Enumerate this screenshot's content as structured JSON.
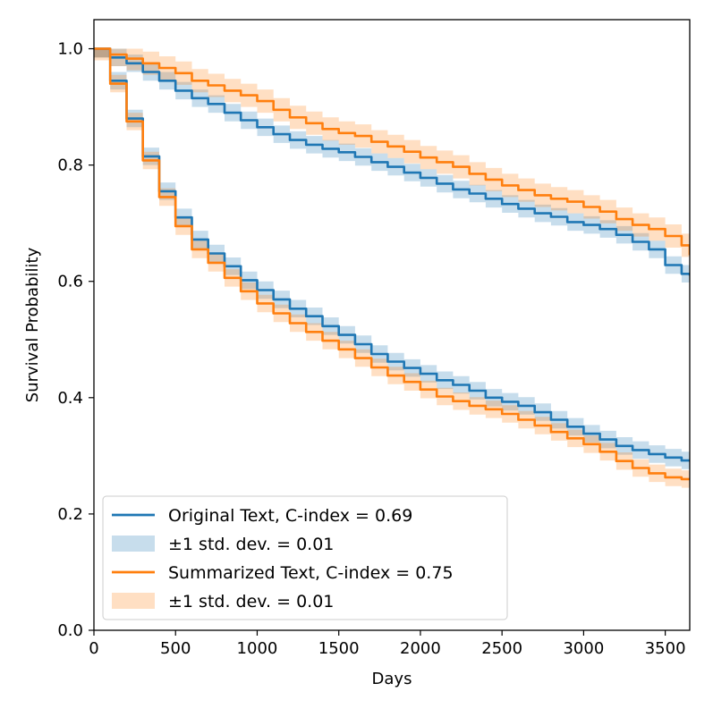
{
  "chart_data": {
    "type": "line",
    "title": "",
    "xlabel": "Days",
    "ylabel": "Survival Probability",
    "xlim": [
      0,
      3650
    ],
    "ylim": [
      0.0,
      1.05
    ],
    "xticks": [
      0,
      500,
      1000,
      1500,
      2000,
      2500,
      3000,
      3500
    ],
    "yticks": [
      0.0,
      0.2,
      0.4,
      0.6,
      0.8,
      1.0
    ],
    "xtick_labels": [
      "0",
      "500",
      "1000",
      "1500",
      "2000",
      "2500",
      "3000",
      "3500"
    ],
    "ytick_labels": [
      "0.0",
      "0.2",
      "0.4",
      "0.6",
      "0.8",
      "1.0"
    ],
    "grid": false,
    "legend_position": "lower-left",
    "legend": [
      {
        "label": "Original Text, C-index = 0.69",
        "kind": "line",
        "color": "#1f77b4"
      },
      {
        "label": "±1 std. dev. = 0.01",
        "kind": "band",
        "color": "#1f77b4"
      },
      {
        "label": "Summarized Text, C-index = 0.75",
        "kind": "line",
        "color": "#ff7f0e"
      },
      {
        "label": "±1 std. dev. = 0.01",
        "kind": "band",
        "color": "#ff7f0e"
      }
    ],
    "series": [
      {
        "name": "Original Text (upper curve)",
        "color": "#1f77b4",
        "x": [
          0,
          100,
          200,
          300,
          400,
          500,
          600,
          700,
          800,
          900,
          1000,
          1100,
          1200,
          1300,
          1400,
          1500,
          1600,
          1700,
          1800,
          1900,
          2000,
          2100,
          2200,
          2300,
          2400,
          2500,
          2600,
          2700,
          2800,
          2900,
          3000,
          3100,
          3200,
          3300,
          3400,
          3500,
          3600,
          3650
        ],
        "y": [
          1.0,
          0.985,
          0.975,
          0.96,
          0.945,
          0.928,
          0.915,
          0.905,
          0.89,
          0.877,
          0.865,
          0.853,
          0.843,
          0.835,
          0.828,
          0.822,
          0.814,
          0.805,
          0.797,
          0.787,
          0.778,
          0.768,
          0.758,
          0.751,
          0.742,
          0.733,
          0.725,
          0.717,
          0.711,
          0.702,
          0.697,
          0.69,
          0.68,
          0.668,
          0.655,
          0.628,
          0.613,
          0.61
        ],
        "band": 0.015
      },
      {
        "name": "Summarized Text (upper curve)",
        "color": "#ff7f0e",
        "x": [
          0,
          100,
          200,
          300,
          400,
          500,
          600,
          700,
          800,
          900,
          1000,
          1100,
          1200,
          1300,
          1400,
          1500,
          1600,
          1700,
          1800,
          1900,
          2000,
          2100,
          2200,
          2300,
          2400,
          2500,
          2600,
          2700,
          2800,
          2900,
          3000,
          3100,
          3200,
          3300,
          3400,
          3500,
          3600,
          3650
        ],
        "y": [
          1.0,
          0.99,
          0.983,
          0.975,
          0.967,
          0.958,
          0.945,
          0.937,
          0.928,
          0.92,
          0.91,
          0.895,
          0.882,
          0.872,
          0.862,
          0.855,
          0.85,
          0.84,
          0.832,
          0.823,
          0.813,
          0.805,
          0.797,
          0.785,
          0.775,
          0.765,
          0.757,
          0.748,
          0.742,
          0.737,
          0.728,
          0.72,
          0.707,
          0.697,
          0.69,
          0.678,
          0.662,
          0.645
        ],
        "band": 0.02
      },
      {
        "name": "Original Text (lower curve)",
        "color": "#1f77b4",
        "x": [
          0,
          100,
          200,
          300,
          400,
          500,
          600,
          700,
          800,
          900,
          1000,
          1100,
          1200,
          1300,
          1400,
          1500,
          1600,
          1700,
          1800,
          1900,
          2000,
          2100,
          2200,
          2300,
          2400,
          2500,
          2600,
          2700,
          2800,
          2900,
          3000,
          3100,
          3200,
          3300,
          3400,
          3500,
          3600,
          3650
        ],
        "y": [
          1.0,
          0.945,
          0.88,
          0.815,
          0.755,
          0.71,
          0.672,
          0.648,
          0.626,
          0.602,
          0.585,
          0.569,
          0.553,
          0.54,
          0.523,
          0.508,
          0.492,
          0.475,
          0.462,
          0.451,
          0.441,
          0.43,
          0.422,
          0.412,
          0.4,
          0.393,
          0.386,
          0.375,
          0.362,
          0.35,
          0.338,
          0.328,
          0.317,
          0.31,
          0.303,
          0.297,
          0.292,
          0.29
        ],
        "band": 0.015
      },
      {
        "name": "Summarized Text (lower curve)",
        "color": "#ff7f0e",
        "x": [
          0,
          100,
          200,
          300,
          400,
          500,
          600,
          700,
          800,
          900,
          1000,
          1100,
          1200,
          1300,
          1400,
          1500,
          1600,
          1700,
          1800,
          1900,
          2000,
          2100,
          2200,
          2300,
          2400,
          2500,
          2600,
          2700,
          2800,
          2900,
          3000,
          3100,
          3200,
          3300,
          3400,
          3500,
          3600,
          3650
        ],
        "y": [
          1.0,
          0.94,
          0.875,
          0.808,
          0.745,
          0.695,
          0.655,
          0.632,
          0.606,
          0.583,
          0.562,
          0.545,
          0.528,
          0.513,
          0.498,
          0.483,
          0.468,
          0.452,
          0.438,
          0.427,
          0.414,
          0.402,
          0.394,
          0.386,
          0.38,
          0.372,
          0.362,
          0.352,
          0.341,
          0.33,
          0.32,
          0.307,
          0.291,
          0.279,
          0.27,
          0.263,
          0.26,
          0.26
        ],
        "band": 0.015
      }
    ]
  }
}
